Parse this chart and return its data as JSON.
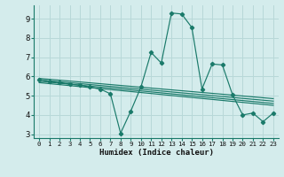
{
  "xlabel": "Humidex (Indice chaleur)",
  "bg_color": "#d4ecec",
  "grid_color": "#b8d8d8",
  "line_color": "#1a7a6a",
  "xlim": [
    -0.5,
    23.5
  ],
  "ylim": [
    2.8,
    9.7
  ],
  "yticks": [
    3,
    4,
    5,
    6,
    7,
    8,
    9
  ],
  "xticks": [
    0,
    1,
    2,
    3,
    4,
    5,
    6,
    7,
    8,
    9,
    10,
    11,
    12,
    13,
    14,
    15,
    16,
    17,
    18,
    19,
    20,
    21,
    22,
    23
  ],
  "series1_x": [
    0,
    1,
    2,
    3,
    4,
    5,
    6,
    7,
    8,
    9,
    10,
    11,
    12,
    13,
    14,
    15,
    16,
    17,
    18,
    19,
    20,
    21,
    22,
    23
  ],
  "series1_y": [
    5.85,
    5.75,
    5.7,
    5.6,
    5.55,
    5.45,
    5.35,
    5.1,
    3.05,
    4.2,
    5.45,
    7.25,
    6.7,
    9.3,
    9.25,
    8.55,
    5.35,
    6.65,
    6.6,
    5.05,
    4.0,
    4.1,
    3.65,
    4.1
  ],
  "series2_x": [
    0,
    23
  ],
  "series2_y": [
    5.9,
    4.85
  ],
  "series3_x": [
    0,
    23
  ],
  "series3_y": [
    5.82,
    4.72
  ],
  "series4_x": [
    0,
    23
  ],
  "series4_y": [
    5.75,
    4.6
  ],
  "series5_x": [
    0,
    23
  ],
  "series5_y": [
    5.68,
    4.5
  ]
}
